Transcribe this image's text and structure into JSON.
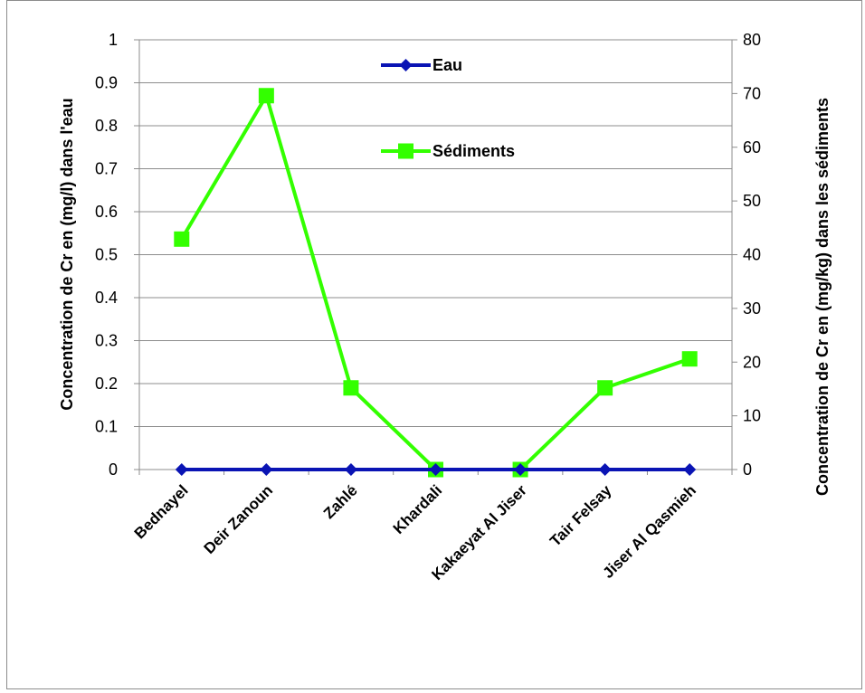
{
  "chart_data": {
    "type": "line",
    "categories": [
      "Bednayel",
      "Deir Zanoun",
      "Zahlé",
      "Khardali",
      "Kakaeyat Al Jiser",
      "Tair Felsay",
      "Jiser Al Qasmieh"
    ],
    "series": [
      {
        "name": "Eau",
        "axis": "left",
        "color": "#0a14b4",
        "marker": "diamond",
        "values": [
          0,
          0,
          0,
          0,
          0,
          0,
          0
        ]
      },
      {
        "name": "Sédiments",
        "axis": "right",
        "color": "#33ff00",
        "marker": "square",
        "values": [
          42.9,
          69.6,
          15.2,
          0,
          0,
          15.2,
          20.6
        ]
      }
    ],
    "y_left": {
      "label": "Concentration de Cr en (mg/l) dans l'eau",
      "lim": [
        0,
        1
      ],
      "ticks": [
        "0",
        "0.1",
        "0.2",
        "0.3",
        "0.4",
        "0.5",
        "0.6",
        "0.7",
        "0.8",
        "0.9",
        "1"
      ]
    },
    "y_right": {
      "label": "Concentration de Cr en (mg/kg) dans les sédiments",
      "lim": [
        0,
        80
      ],
      "ticks": [
        "0",
        "10",
        "20",
        "30",
        "40",
        "50",
        "60",
        "70",
        "80"
      ]
    },
    "grid": true,
    "legend_position": "top-center"
  }
}
